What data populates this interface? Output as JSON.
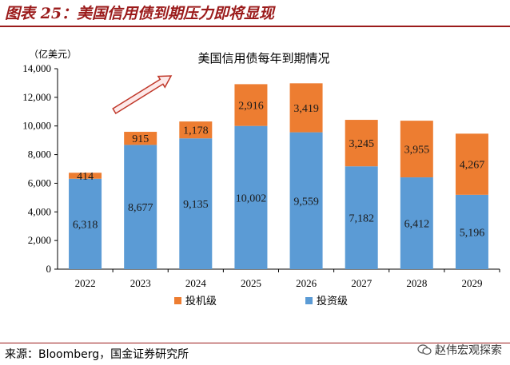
{
  "figure_title": "图表 25：美国信用债到期压力即将显现",
  "source": "来源：Bloomberg，国金证券研究所",
  "watermark": "赵伟宏观探索",
  "colors": {
    "accent": "#9b1b1b",
    "investment_grade": "#5b9bd5",
    "high_yield": "#ed7d31"
  },
  "chart_data": {
    "type": "bar",
    "stacked": true,
    "title": "美国信用债每年到期情况",
    "unit_label": "（亿美元）",
    "categories": [
      "2022",
      "2023",
      "2024",
      "2025",
      "2026",
      "2027",
      "2028",
      "2029"
    ],
    "series": [
      {
        "name": "投资级",
        "color": "#5b9bd5",
        "values": [
          6318,
          8677,
          9135,
          10002,
          9559,
          7182,
          6412,
          5196
        ]
      },
      {
        "name": "投机级",
        "color": "#ed7d31",
        "values": [
          414,
          915,
          1178,
          2916,
          3419,
          3245,
          3955,
          4267
        ]
      }
    ],
    "value_labels": {
      "investment_grade": [
        "6,318",
        "8,677",
        "9,135",
        "10,002",
        "9,559",
        "7,182",
        "6,412",
        "5,196"
      ],
      "high_yield": [
        "414",
        "915",
        "1,178",
        "2,916",
        "3,419",
        "3,245",
        "3,955",
        "4,267"
      ]
    },
    "yticks": [
      "0",
      "2,000",
      "4,000",
      "6,000",
      "8,000",
      "10,000",
      "12,000",
      "14,000"
    ],
    "ytick_values": [
      0,
      2000,
      4000,
      6000,
      8000,
      10000,
      12000,
      14000
    ],
    "ylim": [
      0,
      14000
    ],
    "legend": [
      "投机级",
      "投资级"
    ],
    "legend_position": "bottom",
    "grid": false,
    "annotation": "rising arrow"
  }
}
